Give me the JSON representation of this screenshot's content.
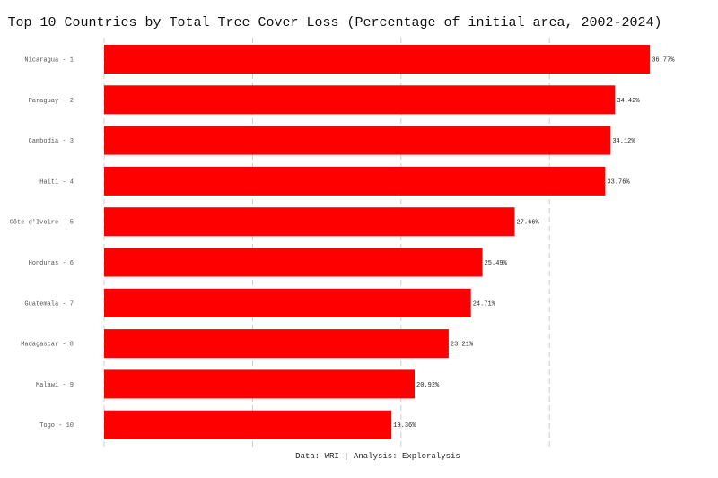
{
  "chart_data": {
    "type": "bar",
    "orientation": "horizontal",
    "title": "Top 10 Countries by Total Tree Cover Loss (Percentage of initial area, 2002-2024)",
    "caption": "Data: WRI | Analysis: Exploralysis",
    "categories": [
      "Nicaragua - 1",
      "Paraguay - 2",
      "Cambodia - 3",
      "Haiti - 4",
      "Côte d'Ivoire - 5",
      "Honduras - 6",
      "Guatemala - 7",
      "Madagascar - 8",
      "Malawi - 9",
      "Togo - 10"
    ],
    "values": [
      36.77,
      34.42,
      34.12,
      33.76,
      27.66,
      25.49,
      24.71,
      23.21,
      20.92,
      19.36
    ],
    "value_labels": [
      "36.77%",
      "34.42%",
      "34.12%",
      "33.76%",
      "27.66%",
      "25.49%",
      "24.71%",
      "23.21%",
      "20.92%",
      "19.36%"
    ],
    "xlim": [
      0,
      37
    ],
    "grid_ticks": [
      0,
      10,
      20,
      30
    ],
    "grid": true,
    "xlabel": "",
    "ylabel": "",
    "bar_color": "#ff0000"
  }
}
